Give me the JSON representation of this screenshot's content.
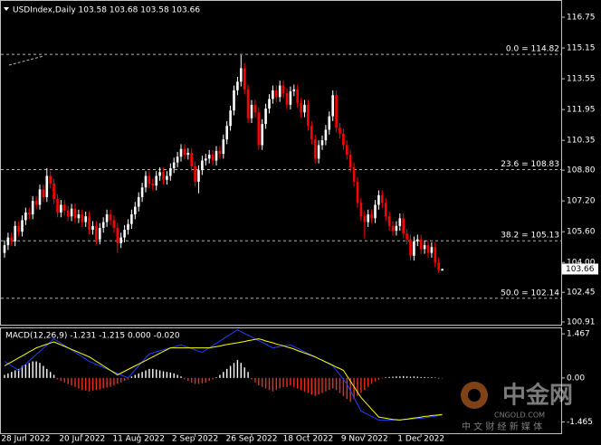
{
  "chart_data": [
    {
      "type": "candlestick",
      "title": "USDIndex,Daily 103.58 103.68 103.58 103.66",
      "categories": [
        null,
        null,
        null,
        null,
        null,
        null,
        "28 Jun 2022",
        null,
        null,
        null,
        null,
        null,
        null,
        null,
        null,
        null,
        null,
        null,
        null,
        null,
        null,
        null,
        "20 Jul 2022",
        null,
        null,
        null,
        null,
        null,
        null,
        null,
        null,
        null,
        null,
        null,
        null,
        null,
        null,
        null,
        "11 Aug 2022",
        null,
        null,
        null,
        null,
        null,
        null,
        null,
        null,
        null,
        null,
        null,
        null,
        null,
        null,
        null,
        "2 Sep 2022",
        null,
        null,
        null,
        null,
        null,
        null,
        null,
        null,
        null,
        null,
        null,
        null,
        null,
        null,
        null,
        "26 Sep 2022",
        null,
        null,
        null,
        null,
        null,
        null,
        null,
        null,
        null,
        null,
        null,
        null,
        null,
        null,
        null,
        "18 Oct 2022",
        null,
        null,
        null,
        null,
        null,
        null,
        null,
        null,
        null,
        null,
        null,
        null,
        null,
        null,
        null,
        "9 Nov 2022",
        null,
        null,
        null,
        null,
        null,
        null,
        null,
        null,
        null,
        null,
        null,
        null,
        null,
        null,
        null,
        "1 Dec 2022",
        null,
        null,
        null,
        null,
        null,
        null
      ],
      "open": [
        104.5,
        104.9,
        105.3,
        105.1,
        105.9,
        105.6,
        106.2,
        106.6,
        106.5,
        107.2,
        107.0,
        107.8,
        107.4,
        108.5,
        108.1,
        107.3,
        106.6,
        107.0,
        106.7,
        106.4,
        106.8,
        106.3,
        106.5,
        106.1,
        106.4,
        105.7,
        105.9,
        105.2,
        105.8,
        106.1,
        106.5,
        106.2,
        105.8,
        105.0,
        105.3,
        105.7,
        106.0,
        106.5,
        106.9,
        107.4,
        107.9,
        108.5,
        108.1,
        108.0,
        108.5,
        108.7,
        108.3,
        108.5,
        108.9,
        109.2,
        109.5,
        109.9,
        109.6,
        109.7,
        109.0,
        108.2,
        108.8,
        109.3,
        109.4,
        109.6,
        109.3,
        109.8,
        109.65,
        110.4,
        111.1,
        111.9,
        112.95,
        113.4,
        114.1,
        113.0,
        111.5,
        112.2,
        111.8,
        110.1,
        111.2,
        112.0,
        112.5,
        112.95,
        112.6,
        113.2,
        112.8,
        112.2,
        112.9,
        113.0,
        112.3,
        111.8,
        112.2,
        111.1,
        110.4,
        109.4,
        110.1,
        110.35,
        110.9,
        111.6,
        112.7,
        111.0,
        110.7,
        110.1,
        109.6,
        108.95,
        108.2,
        107.1,
        106.4,
        106.1,
        106.5,
        106.3,
        107.0,
        107.5,
        107.1,
        106.4,
        105.9,
        105.65,
        105.9,
        106.3,
        105.5,
        105.2,
        104.35,
        105.1,
        105.2,
        104.7,
        104.9,
        104.5,
        104.8,
        104.0,
        103.58
      ],
      "high": [
        105.15,
        105.55,
        105.55,
        106.15,
        106.15,
        106.45,
        106.85,
        106.85,
        107.45,
        107.45,
        108.05,
        108.05,
        108.9,
        108.75,
        108.35,
        107.55,
        107.25,
        107.25,
        106.95,
        107.05,
        107.05,
        106.75,
        106.75,
        106.65,
        106.65,
        106.15,
        106.15,
        106.05,
        106.35,
        106.75,
        106.75,
        106.45,
        106.05,
        105.55,
        105.95,
        106.25,
        106.75,
        107.15,
        107.65,
        108.15,
        108.75,
        108.75,
        108.35,
        108.75,
        108.95,
        108.95,
        108.75,
        109.15,
        109.45,
        109.75,
        110.15,
        110.15,
        109.95,
        109.95,
        109.25,
        109.05,
        109.55,
        109.65,
        109.85,
        109.85,
        110.05,
        110.05,
        110.65,
        111.35,
        112.15,
        113.2,
        113.65,
        114.78,
        114.35,
        113.25,
        112.45,
        112.45,
        112.05,
        111.45,
        112.25,
        112.75,
        113.2,
        113.2,
        113.45,
        113.45,
        113.05,
        113.15,
        113.25,
        113.25,
        112.55,
        112.45,
        112.45,
        111.35,
        110.65,
        110.35,
        110.6,
        111.15,
        111.85,
        112.95,
        112.95,
        111.25,
        110.95,
        110.35,
        109.85,
        109.2,
        108.45,
        107.35,
        106.65,
        106.75,
        106.75,
        107.25,
        107.75,
        107.75,
        107.35,
        106.65,
        106.15,
        106.15,
        106.55,
        106.55,
        105.75,
        105.45,
        105.35,
        105.45,
        105.45,
        105.15,
        105.15,
        105.05,
        105.05,
        104.25,
        103.68
      ],
      "low": [
        104.25,
        104.65,
        104.85,
        104.85,
        105.35,
        105.35,
        105.95,
        106.25,
        106.25,
        106.75,
        106.75,
        107.15,
        107.15,
        107.85,
        107.05,
        106.35,
        106.35,
        106.45,
        106.15,
        106.15,
        106.05,
        106.05,
        105.85,
        105.85,
        105.45,
        105.45,
        104.95,
        104.95,
        105.55,
        105.85,
        105.95,
        105.55,
        104.5,
        104.75,
        105.05,
        105.45,
        105.75,
        106.25,
        106.65,
        107.15,
        107.65,
        107.85,
        107.75,
        107.75,
        108.25,
        108.05,
        108.05,
        108.25,
        108.65,
        108.95,
        109.25,
        109.35,
        109.35,
        108.75,
        107.95,
        107.6,
        108.55,
        109.05,
        109.15,
        109.05,
        109.05,
        109.4,
        109.4,
        110.15,
        110.85,
        111.65,
        112.7,
        113.15,
        112.75,
        111.25,
        111.25,
        111.55,
        109.85,
        109.85,
        110.95,
        111.75,
        112.25,
        112.35,
        112.35,
        112.55,
        111.95,
        111.95,
        112.65,
        112.05,
        111.55,
        111.55,
        110.85,
        110.15,
        109.15,
        109.15,
        109.85,
        110.1,
        110.65,
        111.35,
        110.75,
        110.45,
        109.85,
        109.35,
        108.7,
        107.95,
        106.85,
        106.15,
        105.25,
        105.85,
        106.05,
        106.05,
        106.75,
        106.85,
        106.15,
        105.65,
        105.4,
        105.4,
        105.65,
        105.25,
        104.95,
        104.1,
        104.1,
        104.85,
        104.45,
        104.45,
        104.25,
        104.25,
        103.75,
        103.45,
        103.58
      ],
      "close": [
        104.9,
        105.3,
        105.1,
        105.9,
        105.6,
        106.2,
        106.6,
        106.5,
        107.2,
        107.0,
        107.8,
        107.4,
        108.5,
        108.1,
        107.3,
        106.6,
        107.0,
        106.7,
        106.4,
        106.8,
        106.3,
        106.5,
        106.1,
        106.4,
        105.7,
        105.9,
        105.2,
        105.8,
        106.1,
        106.5,
        106.2,
        105.8,
        105.0,
        105.3,
        105.7,
        106.0,
        106.5,
        106.9,
        107.4,
        107.9,
        108.5,
        108.1,
        108.0,
        108.5,
        108.7,
        108.3,
        108.5,
        108.9,
        109.2,
        109.5,
        109.9,
        109.6,
        109.7,
        109.0,
        108.2,
        108.8,
        109.3,
        109.4,
        109.6,
        109.3,
        109.8,
        109.65,
        110.4,
        111.1,
        111.9,
        112.95,
        113.4,
        114.1,
        113.0,
        111.5,
        112.2,
        111.8,
        110.1,
        111.2,
        112.0,
        112.5,
        112.95,
        112.6,
        113.2,
        112.8,
        112.2,
        112.9,
        113.0,
        112.3,
        111.8,
        112.2,
        111.1,
        110.4,
        109.4,
        110.1,
        110.35,
        110.9,
        111.6,
        112.7,
        111.0,
        110.7,
        110.1,
        109.6,
        108.95,
        108.2,
        107.1,
        106.4,
        106.1,
        106.5,
        106.3,
        107.0,
        107.5,
        107.1,
        106.4,
        105.9,
        105.65,
        105.9,
        106.3,
        105.5,
        105.2,
        104.35,
        105.1,
        105.2,
        104.7,
        104.9,
        104.5,
        104.8,
        104.0,
        103.6,
        103.66
      ],
      "up_color": "#ffffff",
      "down_color": "#ff0000",
      "ylim": [
        100.72,
        117.41
      ],
      "yticks": [
        116.75,
        115.15,
        113.55,
        111.95,
        110.35,
        {
          "value": 108.8,
          "label": "108.80"
        },
        {
          "value": 107.2,
          "label": "107.20"
        },
        {
          "value": 105.6,
          "label": "105.60"
        },
        {
          "value": 104,
          "label": "104.00"
        },
        102.45,
        100.91
      ],
      "fib_levels": [
        {
          "value": 114.82,
          "label": "0.0 = 114.82"
        },
        {
          "value": 108.83,
          "label": "23.6 = 108.83"
        },
        {
          "value": 105.13,
          "label": "38.2 = 105.13"
        },
        {
          "value": 102.14,
          "label": "50.0 = 102.14"
        }
      ],
      "fib_color": "#b4b4b4",
      "last_price": 103.66
    },
    {
      "type": "macd",
      "title": "MACD(12,26,9) -1.231 -1.215 0.000 -0.020",
      "series": [
        {
          "type": "bar",
          "up_color": "#ffffff",
          "down_color": "#e8301c",
          "values": [
            0.1,
            0.15,
            0.2,
            0.25,
            0.3,
            0.4,
            0.45,
            0.5,
            0.55,
            0.55,
            0.5,
            0.4,
            0.3,
            0.2,
            0.1,
            -0.05,
            -0.1,
            -0.15,
            -0.2,
            -0.25,
            -0.3,
            -0.35,
            -0.4,
            -0.42,
            -0.45,
            -0.42,
            -0.4,
            -0.38,
            -0.35,
            -0.32,
            -0.3,
            -0.25,
            -0.2,
            -0.15,
            -0.1,
            -0.05,
            0.05,
            0.1,
            0.15,
            0.2,
            0.25,
            0.3,
            0.3,
            0.28,
            0.25,
            0.22,
            0.2,
            0.18,
            0.15,
            0.1,
            0.05,
            -0.05,
            -0.1,
            -0.15,
            -0.2,
            -0.2,
            -0.18,
            -0.15,
            -0.1,
            -0.05,
            0.02,
            0.1,
            0.2,
            0.3,
            0.4,
            0.5,
            0.6,
            0.5,
            0.35,
            0.2,
            -0.05,
            -0.15,
            -0.25,
            -0.3,
            -0.35,
            -0.4,
            -0.45,
            -0.4,
            -0.35,
            -0.3,
            -0.3,
            -0.25,
            -0.3,
            -0.35,
            -0.4,
            -0.45,
            -0.5,
            -0.55,
            -0.6,
            -0.55,
            -0.5,
            -0.45,
            -0.4,
            -0.35,
            -0.4,
            -0.5,
            -0.6,
            -0.7,
            -0.8,
            -0.7,
            -0.6,
            -0.5,
            -0.4,
            -0.3,
            -0.2,
            -0.12,
            -0.06,
            -0.02,
            0.02,
            0.03,
            0.04,
            0.05,
            0.05,
            0.06,
            0.05,
            0.04,
            0.05,
            0.04,
            0.03,
            0.03,
            0.02,
            0.02,
            0.01,
            0,
            -0.02
          ]
        },
        {
          "type": "line",
          "color": "#2040ff",
          "values": [
            0.55,
            0.48,
            0.4,
            0.33,
            0.25,
            0.36,
            0.46,
            0.57,
            0.67,
            0.78,
            0.88,
            0.99,
            1.09,
            1.2,
            1.3,
            1.23,
            1.15,
            1.08,
            1.0,
            0.93,
            0.85,
            0.78,
            0.7,
            0.63,
            0.55,
            0.5,
            0.45,
            0.4,
            0.35,
            0.3,
            0.25,
            0.2,
            0.15,
            0.1,
            0.05,
            0,
            0.13,
            0.27,
            0.4,
            0.53,
            0.67,
            0.8,
            0.83,
            0.87,
            0.9,
            0.93,
            0.97,
            1.0,
            1.03,
            1.07,
            1.1,
            1.06,
            1.02,
            0.98,
            0.93,
            0.89,
            0.85,
            0.93,
            1.0,
            1.08,
            1.15,
            1.23,
            1.3,
            1.38,
            1.45,
            1.53,
            1.6,
            1.54,
            1.48,
            1.42,
            1.36,
            1.3,
            1.24,
            1.18,
            1.12,
            1.06,
            1.0,
            1.02,
            1.04,
            1.06,
            1.08,
            1.1,
            1.04,
            0.99,
            0.93,
            0.87,
            0.81,
            0.76,
            0.7,
            0.64,
            0.58,
            0.52,
            0.46,
            0.4,
            0.25,
            0.1,
            -0.05,
            -0.2,
            -0.43,
            -0.65,
            -0.88,
            -1.1,
            -1.16,
            -1.22,
            -1.28,
            -1.34,
            -1.4,
            -1.4,
            -1.4,
            -1.4,
            -1.4,
            -1.4,
            -1.4,
            -1.39,
            -1.38,
            -1.37,
            -1.36,
            -1.35,
            -1.34,
            -1.33,
            -1.31,
            -1.29,
            -1.27,
            -1.25,
            -1.231
          ]
        },
        {
          "type": "line",
          "color": "#ffff00",
          "values": [
            0.4,
            0.47,
            0.53,
            0.6,
            0.67,
            0.73,
            0.8,
            0.87,
            0.93,
            1.0,
            1.04,
            1.08,
            1.12,
            1.16,
            1.2,
            1.15,
            1.1,
            1.05,
            1.0,
            0.95,
            0.9,
            0.85,
            0.8,
            0.75,
            0.7,
            0.63,
            0.55,
            0.48,
            0.4,
            0.33,
            0.25,
            0.18,
            0.1,
            0.16,
            0.22,
            0.28,
            0.34,
            0.4,
            0.46,
            0.52,
            0.58,
            0.64,
            0.7,
            0.76,
            0.82,
            0.88,
            0.94,
            1.0,
            1.0,
            1.0,
            1.0,
            1.0,
            1.0,
            1.0,
            1.0,
            1.0,
            1.0,
            1.0,
            1.0,
            1.02,
            1.04,
            1.06,
            1.09,
            1.11,
            1.13,
            1.15,
            1.17,
            1.19,
            1.21,
            1.24,
            1.26,
            1.28,
            1.3,
            1.27,
            1.23,
            1.2,
            1.17,
            1.13,
            1.1,
            1.07,
            1.03,
            1.0,
            0.96,
            0.91,
            0.87,
            0.83,
            0.79,
            0.74,
            0.7,
            0.64,
            0.59,
            0.53,
            0.48,
            0.42,
            0.36,
            0.31,
            0.25,
            0.07,
            -0.11,
            -0.29,
            -0.47,
            -0.65,
            -0.78,
            -0.91,
            -1.04,
            -1.17,
            -1.3,
            -1.32,
            -1.34,
            -1.36,
            -1.38,
            -1.39,
            -1.4,
            -1.38,
            -1.37,
            -1.35,
            -1.33,
            -1.32,
            -1.3,
            -1.28,
            -1.27,
            -1.25,
            -1.24,
            -1.23,
            -1.215
          ]
        }
      ],
      "ylim": [
        -1.9,
        1.65
      ],
      "yticks": [
        1.467,
        {
          "value": 0,
          "label": "0.00"
        },
        -1.465
      ]
    }
  ],
  "watermark": {
    "name": "中金网",
    "site": "CNGOLD.COM",
    "tagline": "中 文 财 经 新 媒 体"
  }
}
